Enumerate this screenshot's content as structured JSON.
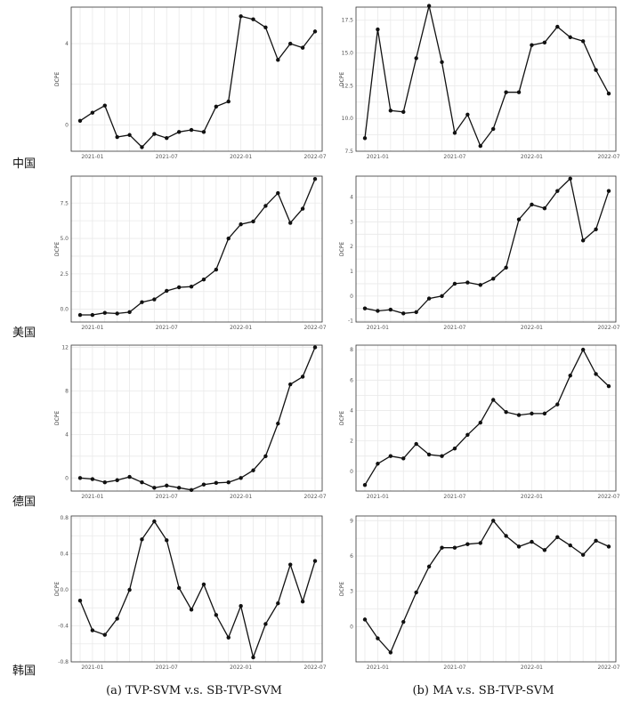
{
  "row_labels": [
    "中国",
    "美国",
    "德国",
    "韩国"
  ],
  "captions": [
    "(a) TVP-SVM v.s. SB-TVP-SVM",
    "(b) MA v.s. SB-TVP-SVM"
  ],
  "x_ticks": [
    "2021-01",
    "2021-07",
    "2022-01",
    "2022-07"
  ],
  "chart_data": [
    {
      "type": "line",
      "ylabel": "DCPE",
      "ylim": [
        -1.3,
        5.8
      ],
      "yticks": [
        0,
        4
      ],
      "ytick_labels": [
        "0",
        "4"
      ],
      "values": [
        0.2,
        0.6,
        0.95,
        -0.6,
        -0.5,
        -1.1,
        -0.45,
        -0.65,
        -0.35,
        -0.25,
        -0.35,
        0.9,
        1.15,
        5.35,
        5.2,
        4.8,
        3.2,
        4.0,
        3.8,
        4.6
      ]
    },
    {
      "type": "line",
      "ylabel": "DCPE",
      "ylim": [
        7.5,
        18.5
      ],
      "yticks": [
        7.5,
        10.0,
        12.5,
        15.0,
        17.5
      ],
      "ytick_labels": [
        "7.5",
        "10.0",
        "12.5",
        "15.0",
        "17.5"
      ],
      "values": [
        8.5,
        16.8,
        10.6,
        10.5,
        14.6,
        18.6,
        14.3,
        8.9,
        10.3,
        7.9,
        9.2,
        12.0,
        12.0,
        15.6,
        15.8,
        17.0,
        16.2,
        15.9,
        13.7,
        11.9
      ]
    },
    {
      "type": "line",
      "ylabel": "DCPE",
      "ylim": [
        -0.9,
        9.4
      ],
      "yticks": [
        0,
        2.5,
        5.0,
        7.5
      ],
      "ytick_labels": [
        "0.0",
        "2.5",
        "5.0",
        "7.5"
      ],
      "values": [
        -0.4,
        -0.4,
        -0.25,
        -0.3,
        -0.2,
        0.5,
        0.7,
        1.3,
        1.55,
        1.6,
        2.1,
        2.8,
        5.0,
        6.0,
        6.2,
        7.3,
        8.2,
        6.1,
        7.1,
        9.2
      ]
    },
    {
      "type": "line",
      "ylabel": "DCPE",
      "ylim": [
        -1.05,
        4.85
      ],
      "yticks": [
        -1,
        0,
        1,
        2,
        3,
        4
      ],
      "ytick_labels": [
        "-1",
        "0",
        "1",
        "2",
        "3",
        "4"
      ],
      "values": [
        -0.5,
        -0.6,
        -0.55,
        -0.7,
        -0.65,
        -0.1,
        0.0,
        0.5,
        0.55,
        0.45,
        0.7,
        1.15,
        3.1,
        3.7,
        3.55,
        4.25,
        4.75,
        2.25,
        2.7,
        4.25
      ]
    },
    {
      "type": "line",
      "ylabel": "DCPE",
      "ylim": [
        -1.2,
        12.2
      ],
      "yticks": [
        0,
        4,
        8,
        12
      ],
      "ytick_labels": [
        "0",
        "4",
        "8",
        "12"
      ],
      "values": [
        0.0,
        -0.1,
        -0.4,
        -0.2,
        0.1,
        -0.4,
        -0.9,
        -0.7,
        -0.9,
        -1.1,
        -0.6,
        -0.45,
        -0.4,
        0.0,
        0.7,
        2.0,
        5.0,
        8.6,
        9.3,
        12.0
      ]
    },
    {
      "type": "line",
      "ylabel": "DCPE",
      "ylim": [
        -1.3,
        8.3
      ],
      "yticks": [
        0,
        2,
        4,
        6,
        8
      ],
      "ytick_labels": [
        "0",
        "2",
        "4",
        "6",
        "8"
      ],
      "values": [
        -0.9,
        0.5,
        1.0,
        0.85,
        1.8,
        1.1,
        1.0,
        1.5,
        2.4,
        3.2,
        4.7,
        3.9,
        3.7,
        3.8,
        3.8,
        4.4,
        6.3,
        8.0,
        6.4,
        5.6
      ]
    },
    {
      "type": "line",
      "ylabel": "DCPE",
      "ylim": [
        -0.8,
        0.82
      ],
      "yticks": [
        -0.8,
        -0.4,
        0.0,
        0.4,
        0.8
      ],
      "ytick_labels": [
        "-0.8",
        "-0.4",
        "0.0",
        "0.4",
        "0.8"
      ],
      "values": [
        -0.12,
        -0.45,
        -0.5,
        -0.32,
        0.0,
        0.56,
        0.76,
        0.55,
        0.02,
        -0.22,
        0.06,
        -0.28,
        -0.53,
        -0.18,
        -0.75,
        -0.38,
        -0.15,
        0.28,
        -0.13,
        0.32
      ]
    },
    {
      "type": "line",
      "ylabel": "DCPE",
      "ylim": [
        -3,
        9.4
      ],
      "yticks": [
        0,
        3,
        6,
        9
      ],
      "ytick_labels": [
        "0",
        "3",
        "6",
        "9"
      ],
      "values": [
        0.6,
        -1.0,
        -2.2,
        0.4,
        2.9,
        5.1,
        6.7,
        6.7,
        7.0,
        7.1,
        9.0,
        7.7,
        6.8,
        7.2,
        6.5,
        7.6,
        6.9,
        6.1,
        7.3,
        6.8
      ]
    }
  ]
}
